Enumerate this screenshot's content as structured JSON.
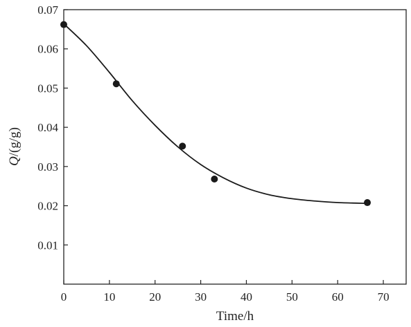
{
  "chart_data": {
    "type": "scatter",
    "xlabel": "Time/h",
    "ylabel": "Q/(g/g)",
    "ylabel_italic_part": "Q",
    "ylabel_rest": "/(g/g)",
    "xlim": [
      0,
      75
    ],
    "ylim": [
      0,
      0.07
    ],
    "xticks": [
      0,
      10,
      20,
      30,
      40,
      50,
      60,
      70
    ],
    "yticks": [
      0.01,
      0.02,
      0.03,
      0.04,
      0.05,
      0.06,
      0.07
    ],
    "grid": false,
    "legend": "none",
    "series": [
      {
        "points": [
          {
            "x": 0,
            "y": 0.0662
          },
          {
            "x": 11.5,
            "y": 0.0511
          },
          {
            "x": 26,
            "y": 0.0352
          },
          {
            "x": 33,
            "y": 0.0268
          },
          {
            "x": 66.5,
            "y": 0.0208
          }
        ],
        "color": "#1a1a1a"
      }
    ],
    "fit_curve": {
      "type": "smooth fitted curve",
      "points": [
        {
          "x": 0,
          "y": 0.0664
        },
        {
          "x": 5,
          "y": 0.0608
        },
        {
          "x": 10,
          "y": 0.054
        },
        {
          "x": 15,
          "y": 0.0468
        },
        {
          "x": 20,
          "y": 0.0405
        },
        {
          "x": 25,
          "y": 0.035
        },
        {
          "x": 30,
          "y": 0.0305
        },
        {
          "x": 35,
          "y": 0.0271
        },
        {
          "x": 40,
          "y": 0.0245
        },
        {
          "x": 45,
          "y": 0.0228
        },
        {
          "x": 50,
          "y": 0.0218
        },
        {
          "x": 55,
          "y": 0.0212
        },
        {
          "x": 60,
          "y": 0.0208
        },
        {
          "x": 66.5,
          "y": 0.0206
        }
      ],
      "color": "#1a1a1a"
    }
  }
}
